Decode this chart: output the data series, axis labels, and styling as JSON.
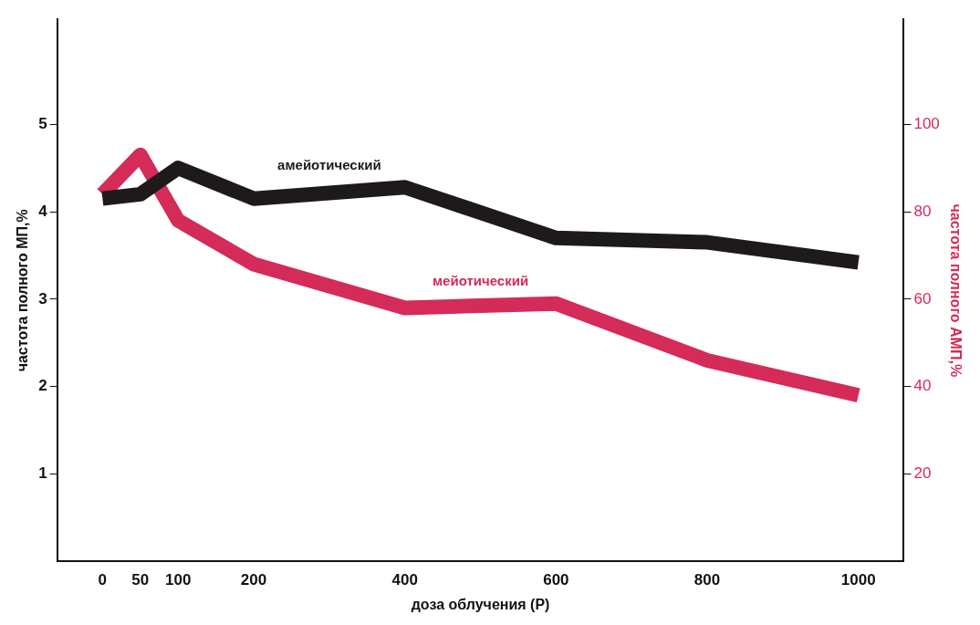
{
  "chart_data": {
    "type": "line",
    "xlabel": "доза облучения (Р)",
    "ylabel": "частота полного МП,%",
    "y2label": "частота полного АМП,%",
    "x": [
      0,
      50,
      100,
      200,
      400,
      600,
      800,
      1000
    ],
    "series": [
      {
        "name": "амейотический",
        "color": "#1e1a1a",
        "values": [
          4.15,
          4.2,
          4.5,
          4.15,
          4.28,
          3.7,
          3.65,
          3.42
        ]
      },
      {
        "name": "мейотический",
        "color": "#d42b58",
        "axis": "y2",
        "values": [
          84,
          93,
          78,
          68,
          58,
          59,
          46,
          38
        ]
      }
    ],
    "xlim": [
      -60,
      1060
    ],
    "xticks": [
      0,
      50,
      100,
      200,
      400,
      600,
      800,
      1000
    ],
    "ylim": [
      0,
      6.2
    ],
    "yticks": [
      1,
      2,
      3,
      4,
      5
    ],
    "y2lim": [
      0,
      124
    ],
    "y2ticks": [
      20,
      40,
      60,
      80,
      100
    ],
    "grid": false,
    "legend": false,
    "marker": "none",
    "line_style": "solid"
  }
}
